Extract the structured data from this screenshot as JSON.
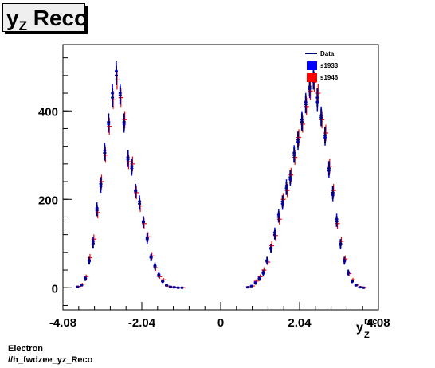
{
  "title": {
    "main": "y",
    "sub": "Z",
    "rest": " Reco"
  },
  "xaxis": {
    "label_main": "y",
    "label_sup": "rec",
    "label_sub": "Z"
  },
  "footer": {
    "line1": "Electron",
    "line2": "//h_fwdzee_yz_Reco"
  },
  "legend": {
    "data": "Data",
    "s1933": "s1933",
    "s1946": "s1946"
  },
  "colors": {
    "data": "#000080",
    "s1933": "#0000ff",
    "s1946": "#ff0000"
  },
  "chart_data": {
    "type": "scatter",
    "xlim": [
      -4.08,
      4.08
    ],
    "ylim": [
      -50,
      550
    ],
    "xticks": [
      -4.08,
      -2.04,
      0,
      2.04,
      4.08
    ],
    "xtick_labels": [
      "-4.08",
      "-2.04",
      "0",
      "2.04",
      "4.08"
    ],
    "yticks": [
      0,
      200,
      400
    ],
    "ytick_labels": [
      "0",
      "200",
      "400"
    ],
    "legend_position": "top-right",
    "x": [
      -3.7,
      -3.6,
      -3.5,
      -3.4,
      -3.3,
      -3.2,
      -3.1,
      -3.0,
      -2.9,
      -2.8,
      -2.7,
      -2.6,
      -2.5,
      -2.4,
      -2.3,
      -2.2,
      -2.1,
      -2.0,
      -1.9,
      -1.8,
      -1.7,
      -1.6,
      -1.5,
      -1.4,
      -1.3,
      -1.2,
      -1.1,
      -1.0,
      0.7,
      0.8,
      0.9,
      1.0,
      1.1,
      1.2,
      1.3,
      1.4,
      1.5,
      1.6,
      1.7,
      1.8,
      1.9,
      2.0,
      2.1,
      2.2,
      2.3,
      2.4,
      2.5,
      2.6,
      2.7,
      2.8,
      2.9,
      3.0,
      3.1,
      3.2,
      3.3,
      3.4,
      3.5,
      3.6,
      3.7
    ],
    "series": [
      {
        "name": "Data",
        "values": [
          2,
          5,
          20,
          62,
          100,
          175,
          235,
          305,
          375,
          430,
          480,
          435,
          375,
          295,
          275,
          218,
          190,
          148,
          113,
          68,
          48,
          28,
          15,
          5,
          2,
          1,
          0,
          0,
          1,
          3,
          10,
          20,
          35,
          62,
          90,
          120,
          160,
          195,
          225,
          250,
          300,
          335,
          375,
          415,
          455,
          470,
          430,
          385,
          345,
          270,
          215,
          150,
          100,
          62,
          35,
          15,
          5,
          1,
          0
        ]
      },
      {
        "name": "s1933",
        "values": [
          2,
          6,
          22,
          60,
          105,
          180,
          230,
          310,
          370,
          440,
          490,
          440,
          370,
          290,
          270,
          220,
          195,
          150,
          110,
          70,
          50,
          30,
          14,
          6,
          2,
          1,
          0,
          0,
          1,
          4,
          12,
          22,
          33,
          60,
          88,
          125,
          165,
          190,
          230,
          245,
          305,
          330,
          380,
          420,
          450,
          475,
          420,
          390,
          340,
          265,
          210,
          155,
          98,
          60,
          33,
          14,
          6,
          1,
          0
        ]
      },
      {
        "name": "s1946",
        "values": [
          3,
          8,
          25,
          68,
          110,
          170,
          240,
          300,
          365,
          425,
          470,
          430,
          380,
          285,
          280,
          215,
          185,
          145,
          115,
          72,
          45,
          25,
          18,
          4,
          2,
          1,
          0,
          0,
          2,
          4,
          15,
          25,
          40,
          58,
          95,
          118,
          155,
          200,
          220,
          255,
          295,
          340,
          370,
          410,
          445,
          465,
          440,
          380,
          350,
          275,
          220,
          145,
          105,
          65,
          32,
          18,
          6,
          2,
          0
        ]
      }
    ]
  }
}
